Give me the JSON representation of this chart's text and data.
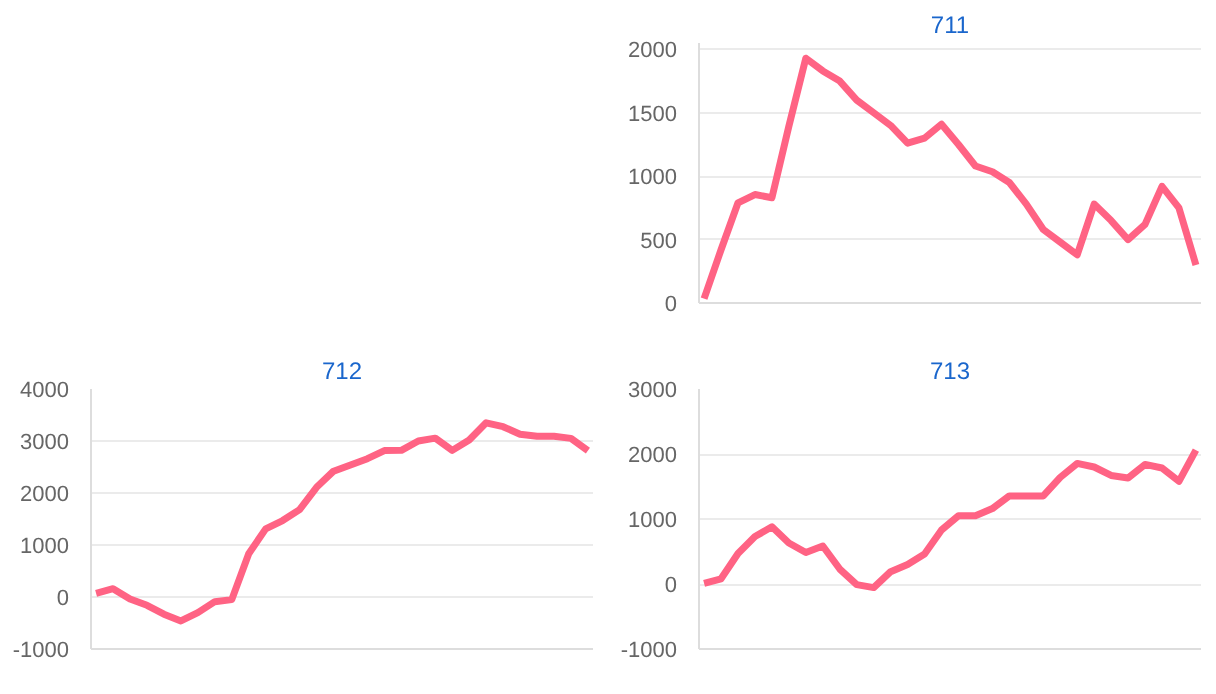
{
  "chart_data": [
    {
      "type": "line",
      "title": "711",
      "categories": [
        null,
        null,
        null,
        null,
        null,
        null,
        null,
        null,
        null,
        null,
        null,
        null,
        null,
        null,
        null,
        null,
        null,
        null,
        null,
        null,
        null,
        null,
        null,
        null,
        null,
        null,
        null,
        null,
        null,
        null
      ],
      "series": [
        {
          "color": "#ff6384",
          "values": [
            35,
            420,
            790,
            855,
            830,
            1395,
            1930,
            1830,
            1750,
            1600,
            1500,
            1400,
            1260,
            1300,
            1410,
            1250,
            1080,
            1035,
            950,
            780,
            580,
            480,
            380,
            780,
            650,
            500,
            620,
            920,
            750,
            300
          ]
        }
      ],
      "ylim": [
        0,
        2050
      ],
      "yticks": [
        0,
        500,
        1000,
        1500,
        2000
      ],
      "grid": "y",
      "tick_labels": "y"
    },
    {
      "type": "line",
      "title": "712",
      "categories": [
        null,
        null,
        null,
        null,
        null,
        null,
        null,
        null,
        null,
        null,
        null,
        null,
        null,
        null,
        null,
        null,
        null,
        null,
        null,
        null,
        null,
        null,
        null,
        null,
        null,
        null,
        null,
        null,
        null,
        null
      ],
      "series": [
        {
          "color": "#ff6384",
          "values": [
            70,
            160,
            -40,
            -160,
            -330,
            -460,
            -300,
            -90,
            -50,
            830,
            1310,
            1470,
            1680,
            2110,
            2420,
            2540,
            2660,
            2815,
            2820,
            3000,
            3055,
            2820,
            3020,
            3350,
            3275,
            3130,
            3090,
            3090,
            3050,
            2815
          ]
        }
      ],
      "ylim": [
        -1000,
        4000
      ],
      "yticks": [
        -1000,
        0,
        1000,
        2000,
        3000,
        4000
      ],
      "grid": "y",
      "tick_labels": "y"
    },
    {
      "type": "line",
      "title": "713",
      "categories": [
        null,
        null,
        null,
        null,
        null,
        null,
        null,
        null,
        null,
        null,
        null,
        null,
        null,
        null,
        null,
        null,
        null,
        null,
        null,
        null,
        null,
        null,
        null,
        null,
        null,
        null,
        null,
        null,
        null,
        null
      ],
      "series": [
        {
          "color": "#ff6384",
          "values": [
            10,
            80,
            470,
            730,
            880,
            630,
            485,
            585,
            230,
            -10,
            -55,
            190,
            300,
            460,
            830,
            1050,
            1050,
            1160,
            1355,
            1355,
            1355,
            1640,
            1855,
            1800,
            1670,
            1630,
            1840,
            1785,
            1580,
            2060
          ]
        }
      ],
      "ylim": [
        -1000,
        3000
      ],
      "yticks": [
        -1000,
        0,
        1000,
        2000,
        3000
      ],
      "grid": "y",
      "tick_labels": "y"
    }
  ]
}
